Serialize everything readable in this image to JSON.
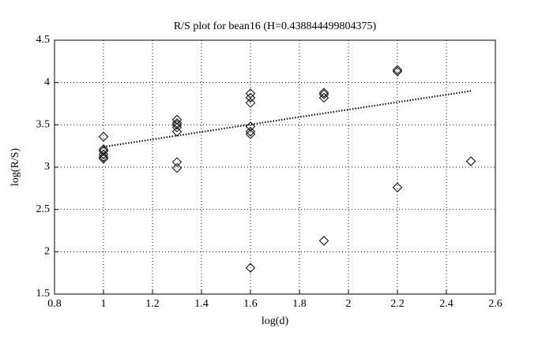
{
  "chart_data": {
    "type": "scatter",
    "title": "R/S plot for bean16 (H=0.438844499804375)",
    "x_label": "log(d)",
    "y_label": "log(R/S)",
    "x": [
      1,
      1,
      1,
      1,
      1,
      1,
      1.3,
      1.3,
      1.3,
      1.3,
      1.3,
      1.3,
      1.3,
      1.6,
      1.6,
      1.6,
      1.6,
      1.6,
      1.6,
      1.6,
      1.9,
      1.9,
      1.9,
      1.9,
      2.2,
      2.2,
      2.2,
      2.5
    ],
    "values": [
      3.36,
      3.21,
      3.19,
      3.15,
      3.12,
      3.1,
      3.56,
      3.52,
      3.5,
      3.47,
      3.42,
      3.06,
      2.99,
      3.87,
      3.82,
      3.76,
      3.48,
      3.42,
      3.39,
      1.81,
      3.88,
      3.86,
      3.82,
      2.13,
      4.15,
      4.13,
      2.76,
      3.07
    ],
    "color": "#000000",
    "fit": {
      "x": [
        1,
        2.5
      ],
      "values": [
        3.24,
        3.9
      ]
    },
    "xlim": [
      0.8,
      2.6
    ],
    "xticks": [
      0.8,
      1,
      1.2,
      1.4,
      1.6,
      1.8,
      2,
      2.2,
      2.4,
      2.6
    ],
    "ylim": [
      1.5,
      4.5
    ],
    "yticks": [
      1.5,
      2,
      2.5,
      3,
      3.5,
      4,
      4.5
    ],
    "grid": true
  }
}
